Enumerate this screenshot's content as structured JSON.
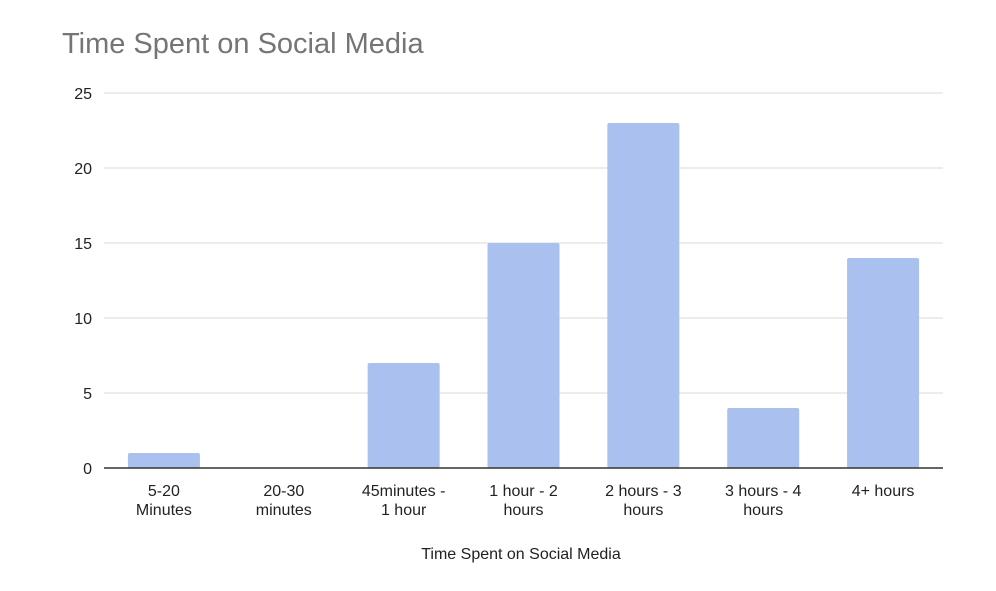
{
  "chart_data": {
    "type": "bar",
    "title": "Time Spent on Social Media",
    "xlabel": "Time Spent on Social Media",
    "ylabel": "",
    "categories": [
      [
        "5-20",
        "Minutes"
      ],
      [
        "20-30",
        "minutes"
      ],
      [
        "45minutes -",
        "1 hour"
      ],
      [
        "1 hour - 2",
        "hours"
      ],
      [
        "2 hours - 3",
        "hours"
      ],
      [
        "3 hours - 4",
        "hours"
      ],
      [
        "4+ hours"
      ]
    ],
    "values": [
      1,
      0,
      7,
      15,
      23,
      4,
      14
    ],
    "ylim": [
      0,
      25
    ],
    "yticks": [
      "0",
      "5",
      "10",
      "15",
      "20",
      "25"
    ],
    "grid": true,
    "legend": "none",
    "bar_color": "#aac0ee",
    "grid_color": "#d9d9d9",
    "axis_color": "#333333"
  }
}
